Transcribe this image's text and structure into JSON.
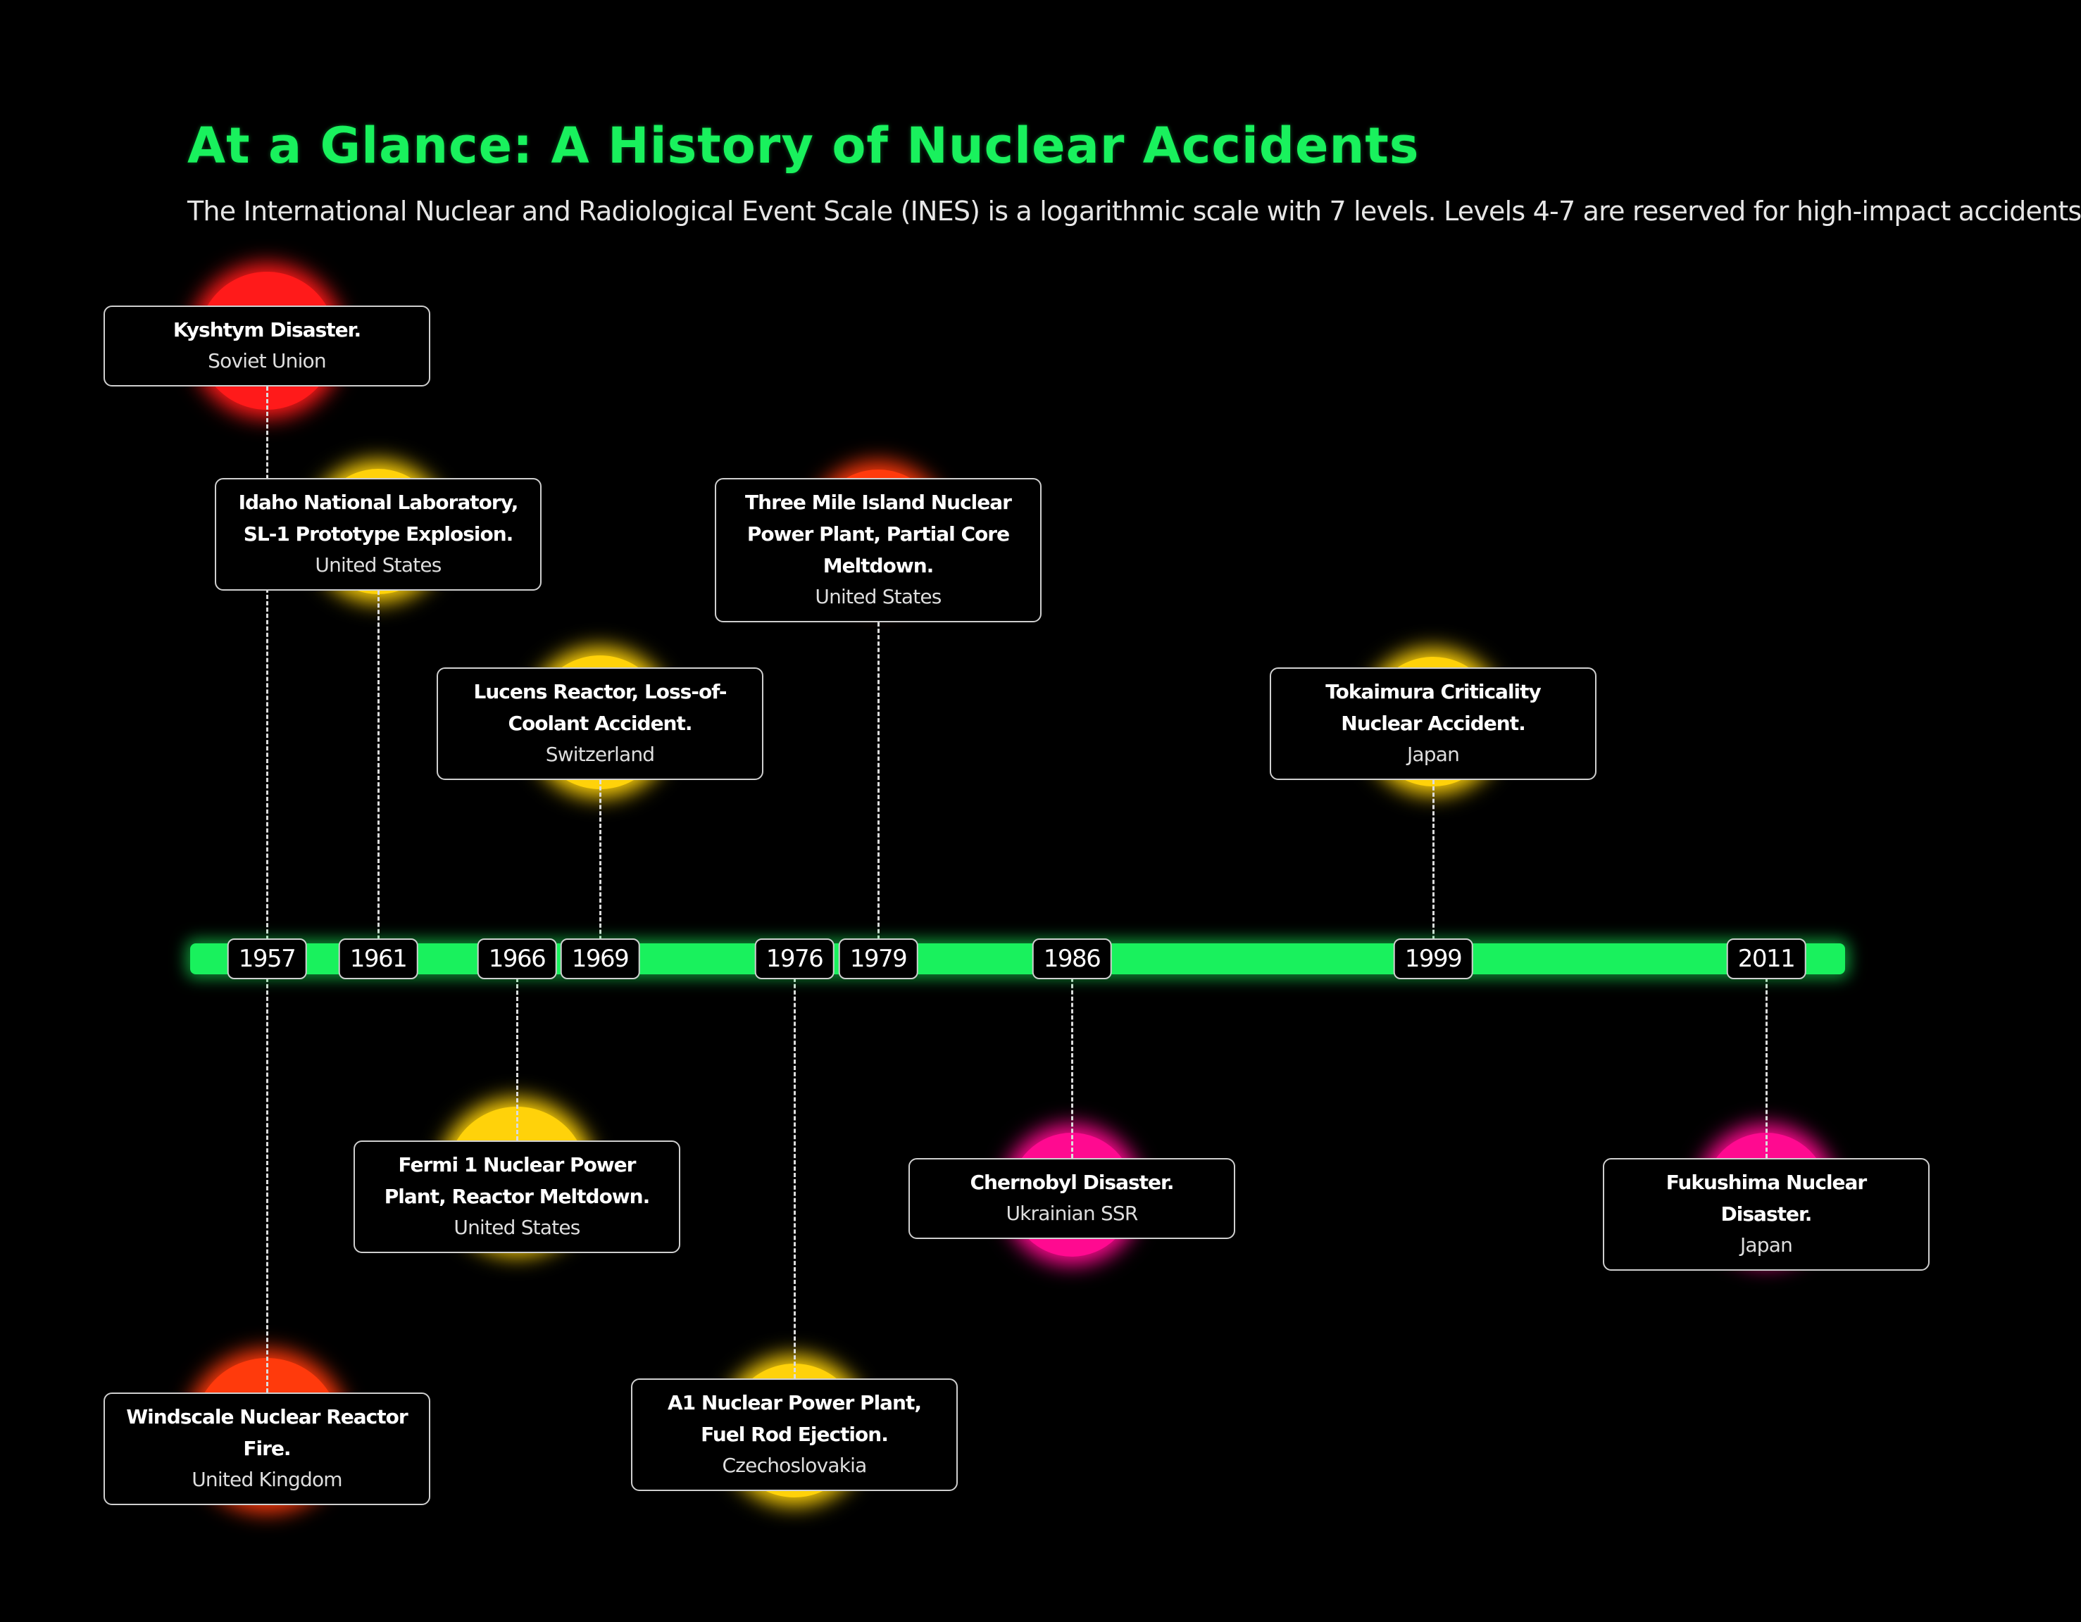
{
  "title": "At a Glance: A History of Nuclear Accidents",
  "subtitle": "The International Nuclear and Radiological Event Scale (INES) is a logarithmic scale with 7 levels. Levels 4-7 are reserved for high-impact accidents",
  "colors": {
    "background": "#000000",
    "title": "#19f15d",
    "timeline": "#19f15d",
    "level_red": "#ff1a1a",
    "level_orange": "#ff3a0c",
    "level_yellow": "#ffd20a",
    "level_pink": "#ff0a90"
  },
  "events": [
    {
      "year": "1957",
      "name": "Kyshtym Disaster.",
      "country": "Soviet Union",
      "color": "#ff1a1a"
    },
    {
      "year": "1957",
      "name": "Windscale Nuclear Reactor Fire.",
      "country": "United Kingdom",
      "color": "#ff3a0c"
    },
    {
      "year": "1961",
      "name": "Idaho National Laboratory, SL-1 Prototype Explosion.",
      "country": "United States",
      "color": "#ffd20a"
    },
    {
      "year": "1966",
      "name": "Fermi 1 Nuclear Power Plant, Reactor Meltdown.",
      "country": "United States",
      "color": "#ffd20a"
    },
    {
      "year": "1969",
      "name": "Lucens Reactor, Loss-of-Coolant Accident.",
      "country": "Switzerland",
      "color": "#ffd20a"
    },
    {
      "year": "1976",
      "name": "A1 Nuclear Power Plant, Fuel Rod Ejection.",
      "country": "Czechoslovakia",
      "color": "#ffd20a"
    },
    {
      "year": "1979",
      "name": "Three Mile Island Nuclear Power Plant, Partial Core Meltdown.",
      "country": "United States",
      "color": "#ff3a0c"
    },
    {
      "year": "1986",
      "name": "Chernobyl Disaster.",
      "country": "Ukrainian SSR",
      "color": "#ff0a90"
    },
    {
      "year": "1999",
      "name": "Tokaimura Criticality Nuclear Accident.",
      "country": "Japan",
      "color": "#ffd20a"
    },
    {
      "year": "2011",
      "name": "Fukushima Nuclear Disaster.",
      "country": "Japan",
      "color": "#ff0a90"
    }
  ],
  "years": [
    "1957",
    "1961",
    "1966",
    "1969",
    "1976",
    "1979",
    "1986",
    "1999",
    "2011"
  ]
}
